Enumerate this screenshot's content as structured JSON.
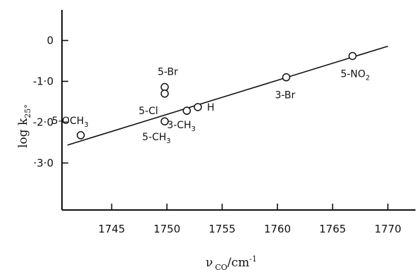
{
  "chart_data": {
    "type": "scatter",
    "title": "",
    "xlabel": {
      "main": "ν",
      "sub": "CO",
      "unit": "/cm",
      "sup": "-1"
    },
    "ylabel": {
      "main": "log k",
      "sub": "25°"
    },
    "xlim": [
      1740.5,
      1772.5
    ],
    "ylim": [
      -4.15,
      0.75
    ],
    "xticks": [
      {
        "value": 1745,
        "label": "1745"
      },
      {
        "value": 1750,
        "label": "1750"
      },
      {
        "value": 1755,
        "label": "1755"
      },
      {
        "value": 1760,
        "label": "1760"
      },
      {
        "value": 1765,
        "label": "1765"
      },
      {
        "value": 1770,
        "label": "1770"
      }
    ],
    "yticks": [
      {
        "value": 0,
        "label": "0"
      },
      {
        "value": -1,
        "label": "-1·0"
      },
      {
        "value": -2,
        "label": "-2·0"
      },
      {
        "value": -3,
        "label": "·3·0"
      }
    ],
    "points": [
      {
        "x": 1742.2,
        "y": -2.32,
        "label": "5-OCH",
        "sub": "3"
      },
      {
        "x": 1749.8,
        "y": -1.14,
        "label": "5-Br",
        "sub": ""
      },
      {
        "x": 1749.8,
        "y": -1.3,
        "label": "5-Cl",
        "sub": ""
      },
      {
        "x": 1749.8,
        "y": -1.98,
        "label": "5-CH",
        "sub": "3"
      },
      {
        "x": 1751.8,
        "y": -1.72,
        "label": "3-CH",
        "sub": "3"
      },
      {
        "x": 1752.8,
        "y": -1.63,
        "label": "H",
        "sub": ""
      },
      {
        "x": 1760.8,
        "y": -0.9,
        "label": "3-Br",
        "sub": ""
      },
      {
        "x": 1766.8,
        "y": -0.38,
        "label": "5-NO",
        "sub": "2"
      }
    ],
    "fit_line": {
      "x": [
        1741.0,
        1770.0
      ],
      "y": [
        -2.56,
        -0.14
      ]
    }
  }
}
